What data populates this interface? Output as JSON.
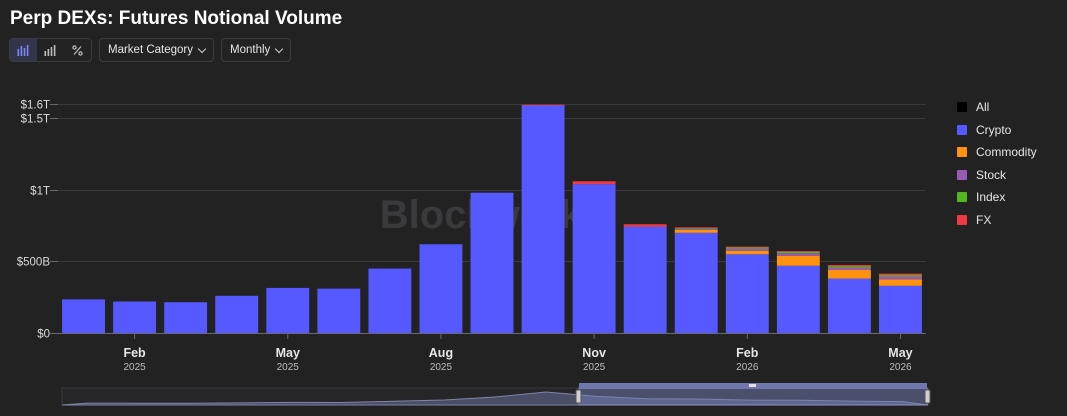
{
  "title": "Perp DEXs: Futures Notional Volume",
  "toolbar": {
    "view_icons": [
      "bar-chart-icon",
      "stacked-bar-icon",
      "percent-icon"
    ],
    "category_label": "Market Category",
    "period_label": "Monthly"
  },
  "watermark": "Blockworks",
  "legend": [
    {
      "label": "All",
      "color": "#000000"
    },
    {
      "label": "Crypto",
      "color": "#5659ff"
    },
    {
      "label": "Commodity",
      "color": "#ff930f"
    },
    {
      "label": "Stock",
      "color": "#9b59b6"
    },
    {
      "label": "Index",
      "color": "#52b61e"
    },
    {
      "label": "FX",
      "color": "#ef3a46"
    }
  ],
  "chart_data": {
    "type": "bar",
    "stacked": true,
    "categories": [
      "2025-01",
      "2025-02",
      "2025-03",
      "2025-04",
      "2025-05",
      "2025-06",
      "2025-07",
      "2025-08",
      "2025-09",
      "2025-10",
      "2025-11",
      "2025-12",
      "2026-01",
      "2026-02",
      "2026-03",
      "2026-04",
      "2026-05"
    ],
    "series": [
      {
        "name": "Crypto",
        "color": "#5659ff",
        "values": [
          235,
          220,
          215,
          260,
          315,
          310,
          450,
          620,
          980,
          1590,
          1040,
          740,
          700,
          550,
          470,
          380,
          330
        ]
      },
      {
        "name": "Commodity",
        "color": "#ff930f",
        "values": [
          0,
          0,
          0,
          0,
          0,
          0,
          0,
          0,
          0,
          0,
          0,
          0,
          20,
          25,
          70,
          60,
          45
        ]
      },
      {
        "name": "Stock",
        "color": "#9b59b6",
        "values": [
          0,
          0,
          0,
          0,
          0,
          0,
          0,
          0,
          0,
          0,
          0,
          5,
          8,
          15,
          18,
          15,
          20
        ]
      },
      {
        "name": "Index",
        "color": "#52b61e",
        "values": [
          0,
          0,
          0,
          0,
          0,
          0,
          0,
          0,
          0,
          0,
          0,
          0,
          5,
          8,
          10,
          10,
          10
        ]
      },
      {
        "name": "FX",
        "color": "#ef3a46",
        "values": [
          0,
          0,
          0,
          0,
          0,
          0,
          0,
          0,
          0,
          5,
          20,
          15,
          5,
          5,
          5,
          10,
          10
        ]
      }
    ],
    "y_ticks": [
      {
        "value": 0,
        "label": "$0"
      },
      {
        "value": 500,
        "label": "$500B"
      },
      {
        "value": 1000,
        "label": "$1T"
      },
      {
        "value": 1500,
        "label": "$1.5T"
      },
      {
        "value": 1600,
        "label": "$1.6T"
      }
    ],
    "x_ticks": [
      {
        "index": 1,
        "month": "Feb",
        "year": "2025"
      },
      {
        "index": 4,
        "month": "May",
        "year": "2025"
      },
      {
        "index": 7,
        "month": "Aug",
        "year": "2025"
      },
      {
        "index": 10,
        "month": "Nov",
        "year": "2025"
      },
      {
        "index": 13,
        "month": "Feb",
        "year": "2026"
      },
      {
        "index": 16,
        "month": "May",
        "year": "2026"
      }
    ],
    "ylim": [
      0,
      1600
    ],
    "unit": "billions USD",
    "grid": true,
    "legend_position": "right"
  }
}
